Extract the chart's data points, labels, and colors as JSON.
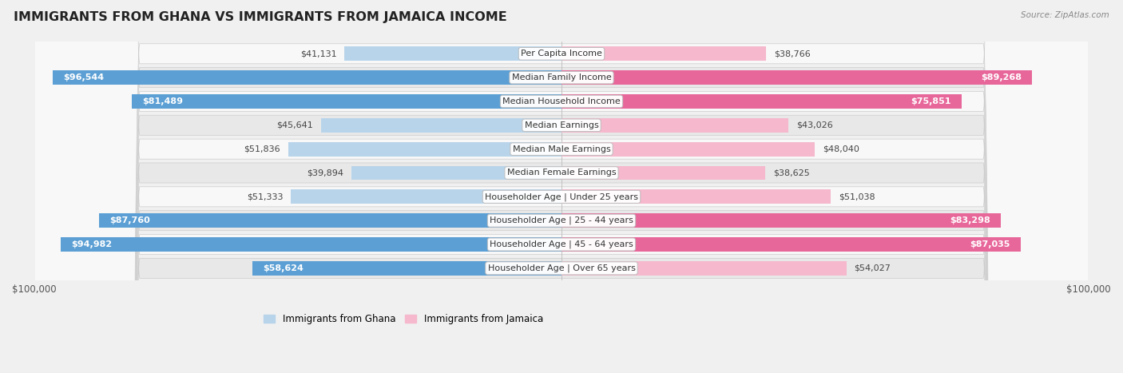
{
  "title": "IMMIGRANTS FROM GHANA VS IMMIGRANTS FROM JAMAICA INCOME",
  "source": "Source: ZipAtlas.com",
  "categories": [
    "Per Capita Income",
    "Median Family Income",
    "Median Household Income",
    "Median Earnings",
    "Median Male Earnings",
    "Median Female Earnings",
    "Householder Age | Under 25 years",
    "Householder Age | 25 - 44 years",
    "Householder Age | 45 - 64 years",
    "Householder Age | Over 65 years"
  ],
  "ghana_values": [
    41131,
    96544,
    81489,
    45641,
    51836,
    39894,
    51333,
    87760,
    94982,
    58624
  ],
  "jamaica_values": [
    38766,
    89268,
    75851,
    43026,
    48040,
    38625,
    51038,
    83298,
    87035,
    54027
  ],
  "ghana_color_light": "#b8d4ea",
  "ghana_color_dark": "#5b9fd4",
  "jamaica_color_light": "#f5b8cc",
  "jamaica_color_dark": "#e8679a",
  "max_value": 100000,
  "ghana_label": "Immigrants from Ghana",
  "jamaica_label": "Immigrants from Jamaica",
  "background_color": "#f0f0f0",
  "row_color_light": "#f8f8f8",
  "row_color_dark": "#e8e8e8",
  "bar_height": 0.6,
  "title_fontsize": 11.5,
  "label_fontsize": 8.0,
  "tick_fontsize": 8.5,
  "value_fontsize": 8.0,
  "inside_threshold": 0.58
}
